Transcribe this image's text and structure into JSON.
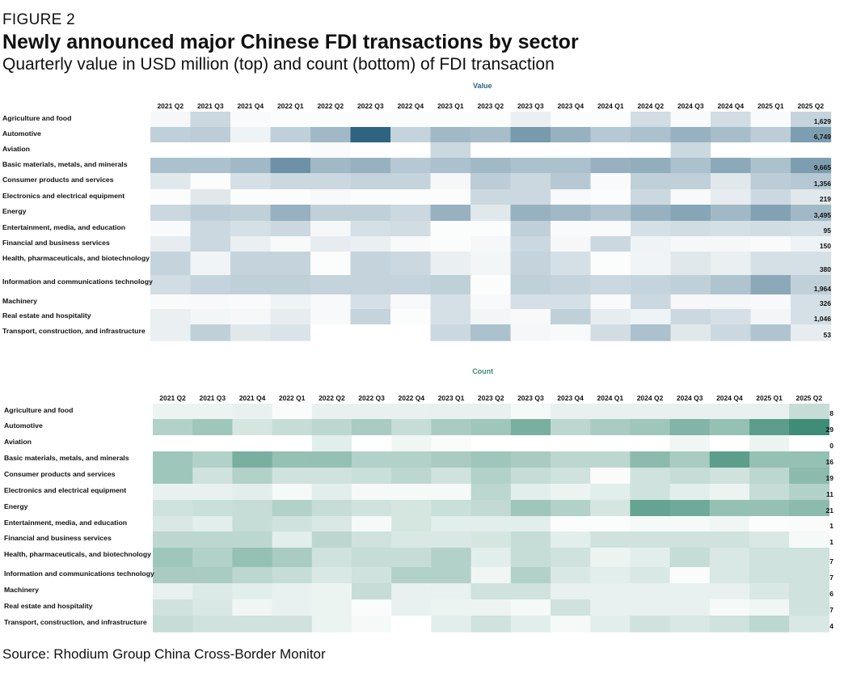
{
  "figure": {
    "label": "FIGURE 2",
    "title": "Newly announced major Chinese FDI transactions by sector",
    "subtitle": "Quarterly value in USD million (top) and count (bottom) of FDI transaction",
    "source": "Source: Rhodium Group China Cross-Border Monitor"
  },
  "colors": {
    "value_scale": "#2e6381",
    "count_scale": "#3f8c77"
  },
  "chart_data": [
    {
      "type": "heatmap",
      "title": "Value",
      "quarters": [
        "2021 Q2",
        "2021 Q3",
        "2021 Q4",
        "2022 Q1",
        "2022 Q2",
        "2022 Q3",
        "2022 Q4",
        "2023 Q1",
        "2023 Q2",
        "2023 Q3",
        "2023 Q4",
        "2024 Q1",
        "2024 Q2",
        "2024 Q3",
        "2024 Q4",
        "2025 Q1",
        "2025 Q2"
      ],
      "sectors": [
        "Agriculture and food",
        "Automotive",
        "Aviation",
        "Basic materials, metals, and minerals",
        "Consumer products and services",
        "Electronics and electrical equipment",
        "Energy",
        "Entertainment, media, and education",
        "Financial and business services",
        "Health, pharmaceuticals, and biotechnology",
        "Information and communications technology",
        "Machinery",
        "Real estate and hospitality",
        "Transport, construction, and infrastructure"
      ],
      "latest_values": [
        "1,629",
        "6,749",
        "",
        "9,665",
        "1,356",
        "219",
        "3,495",
        "95",
        "150",
        "380",
        "1,964",
        "326",
        "1,046",
        "53"
      ],
      "intensity": [
        [
          0.05,
          0.25,
          0.03,
          0.02,
          0.02,
          0.02,
          0.02,
          0.02,
          0.02,
          0.1,
          0.02,
          0.02,
          0.22,
          0.03,
          0.22,
          0.03,
          0.28
        ],
        [
          0.3,
          0.32,
          0.08,
          0.3,
          0.45,
          1.0,
          0.28,
          0.45,
          0.42,
          0.65,
          0.5,
          0.35,
          0.4,
          0.5,
          0.42,
          0.32,
          0.62
        ],
        [
          0.0,
          0.0,
          0.0,
          0.0,
          0.03,
          0.0,
          0.0,
          0.25,
          0.0,
          0.0,
          0.0,
          0.0,
          0.0,
          0.25,
          0.0,
          0.0,
          0.0
        ],
        [
          0.4,
          0.4,
          0.45,
          0.7,
          0.45,
          0.5,
          0.35,
          0.4,
          0.45,
          0.4,
          0.4,
          0.5,
          0.52,
          0.4,
          0.55,
          0.4,
          0.62
        ],
        [
          0.15,
          0.02,
          0.2,
          0.25,
          0.25,
          0.28,
          0.28,
          0.05,
          0.32,
          0.25,
          0.35,
          0.03,
          0.3,
          0.3,
          0.15,
          0.32,
          0.35
        ],
        [
          0.02,
          0.15,
          0.02,
          0.02,
          0.04,
          0.02,
          0.02,
          0.02,
          0.25,
          0.25,
          0.04,
          0.02,
          0.25,
          0.04,
          0.12,
          0.25,
          0.15
        ],
        [
          0.25,
          0.32,
          0.3,
          0.5,
          0.3,
          0.3,
          0.25,
          0.5,
          0.15,
          0.5,
          0.45,
          0.38,
          0.5,
          0.58,
          0.45,
          0.6,
          0.45
        ],
        [
          0.03,
          0.25,
          0.2,
          0.25,
          0.05,
          0.2,
          0.22,
          0.02,
          0.02,
          0.3,
          0.03,
          0.03,
          0.2,
          0.22,
          0.2,
          0.22,
          0.2
        ],
        [
          0.12,
          0.25,
          0.1,
          0.04,
          0.12,
          0.1,
          0.04,
          0.02,
          0.05,
          0.25,
          0.05,
          0.25,
          0.08,
          0.05,
          0.05,
          0.03,
          0.08
        ],
        [
          0.28,
          0.07,
          0.28,
          0.28,
          0.02,
          0.28,
          0.25,
          0.1,
          0.06,
          0.28,
          0.2,
          0.02,
          0.07,
          0.15,
          0.1,
          0.2,
          0.2
        ],
        [
          0.22,
          0.28,
          0.3,
          0.3,
          0.28,
          0.28,
          0.28,
          0.3,
          0.02,
          0.3,
          0.28,
          0.25,
          0.28,
          0.3,
          0.38,
          0.55,
          0.3
        ],
        [
          0.03,
          0.04,
          0.03,
          0.08,
          0.04,
          0.2,
          0.04,
          0.2,
          0.04,
          0.2,
          0.2,
          0.03,
          0.25,
          0.05,
          0.05,
          0.04,
          0.2
        ],
        [
          0.1,
          0.06,
          0.05,
          0.12,
          0.04,
          0.28,
          0.02,
          0.2,
          0.06,
          0.04,
          0.3,
          0.12,
          0.08,
          0.25,
          0.2,
          0.06,
          0.2
        ],
        [
          0.1,
          0.3,
          0.15,
          0.18,
          0.0,
          0.0,
          0.0,
          0.25,
          0.4,
          0.05,
          0.04,
          0.22,
          0.4,
          0.15,
          0.25,
          0.38,
          0.12
        ]
      ]
    },
    {
      "type": "heatmap",
      "title": "Count",
      "quarters": [
        "2021 Q2",
        "2021 Q3",
        "2021 Q4",
        "2022 Q1",
        "2022 Q2",
        "2022 Q3",
        "2022 Q4",
        "2023 Q1",
        "2023 Q2",
        "2023 Q3",
        "2023 Q4",
        "2024 Q1",
        "2024 Q2",
        "2024 Q3",
        "2024 Q4",
        "2025 Q1",
        "2025 Q2"
      ],
      "sectors": [
        "Agriculture and food",
        "Automotive",
        "Aviation",
        "Basic materials, metals, and minerals",
        "Consumer products and services",
        "Electronics and electrical equipment",
        "Energy",
        "Entertainment, media, and education",
        "Financial and business services",
        "Health, pharmaceuticals, and biotechnology",
        "Information and communications technology",
        "Machinery",
        "Real estate and hospitality",
        "Transport, construction, and infrastructure"
      ],
      "latest_values": [
        "8",
        "29",
        "0",
        "16",
        "19",
        "11",
        "21",
        "1",
        "1",
        "7",
        "7",
        "6",
        "7",
        "4"
      ],
      "intensity": [
        [
          0.1,
          0.1,
          0.12,
          0.03,
          0.12,
          0.12,
          0.12,
          0.12,
          0.12,
          0.05,
          0.12,
          0.12,
          0.12,
          0.12,
          0.12,
          0.12,
          0.3
        ],
        [
          0.4,
          0.5,
          0.22,
          0.3,
          0.35,
          0.45,
          0.3,
          0.45,
          0.5,
          0.7,
          0.35,
          0.45,
          0.5,
          0.65,
          0.55,
          0.85,
          1.0
        ],
        [
          0.0,
          0.0,
          0.0,
          0.0,
          0.15,
          0.0,
          0.08,
          0.03,
          0.0,
          0.0,
          0.0,
          0.0,
          0.0,
          0.08,
          0.0,
          0.1,
          0.0
        ],
        [
          0.5,
          0.4,
          0.7,
          0.55,
          0.55,
          0.4,
          0.4,
          0.45,
          0.5,
          0.45,
          0.35,
          0.35,
          0.6,
          0.45,
          0.85,
          0.55,
          0.55
        ],
        [
          0.5,
          0.25,
          0.4,
          0.25,
          0.25,
          0.28,
          0.35,
          0.25,
          0.4,
          0.3,
          0.25,
          0.03,
          0.25,
          0.3,
          0.25,
          0.35,
          0.6
        ],
        [
          0.12,
          0.12,
          0.15,
          0.05,
          0.15,
          0.05,
          0.05,
          0.05,
          0.35,
          0.15,
          0.1,
          0.15,
          0.25,
          0.15,
          0.1,
          0.3,
          0.4
        ],
        [
          0.25,
          0.28,
          0.3,
          0.4,
          0.3,
          0.25,
          0.22,
          0.28,
          0.32,
          0.5,
          0.4,
          0.22,
          0.8,
          0.75,
          0.55,
          0.55,
          0.6
        ],
        [
          0.2,
          0.15,
          0.3,
          0.25,
          0.2,
          0.05,
          0.22,
          0.15,
          0.15,
          0.15,
          0.02,
          0.02,
          0.05,
          0.05,
          0.08,
          0.02,
          0.03
        ],
        [
          0.35,
          0.35,
          0.35,
          0.15,
          0.35,
          0.25,
          0.2,
          0.2,
          0.22,
          0.3,
          0.15,
          0.25,
          0.25,
          0.25,
          0.25,
          0.2,
          0.05
        ],
        [
          0.5,
          0.4,
          0.55,
          0.45,
          0.25,
          0.3,
          0.3,
          0.4,
          0.15,
          0.3,
          0.25,
          0.1,
          0.15,
          0.3,
          0.2,
          0.25,
          0.25
        ],
        [
          0.45,
          0.45,
          0.35,
          0.3,
          0.2,
          0.25,
          0.4,
          0.4,
          0.08,
          0.4,
          0.2,
          0.15,
          0.2,
          0.03,
          0.2,
          0.25,
          0.25
        ],
        [
          0.12,
          0.18,
          0.15,
          0.12,
          0.1,
          0.3,
          0.12,
          0.12,
          0.25,
          0.25,
          0.12,
          0.12,
          0.12,
          0.12,
          0.12,
          0.2,
          0.25
        ],
        [
          0.25,
          0.2,
          0.08,
          0.12,
          0.1,
          0.03,
          0.12,
          0.1,
          0.1,
          0.05,
          0.25,
          0.12,
          0.12,
          0.12,
          0.05,
          0.08,
          0.25
        ],
        [
          0.3,
          0.25,
          0.25,
          0.25,
          0.1,
          0.05,
          0.0,
          0.15,
          0.25,
          0.15,
          0.05,
          0.15,
          0.25,
          0.2,
          0.25,
          0.35,
          0.2
        ]
      ]
    }
  ]
}
